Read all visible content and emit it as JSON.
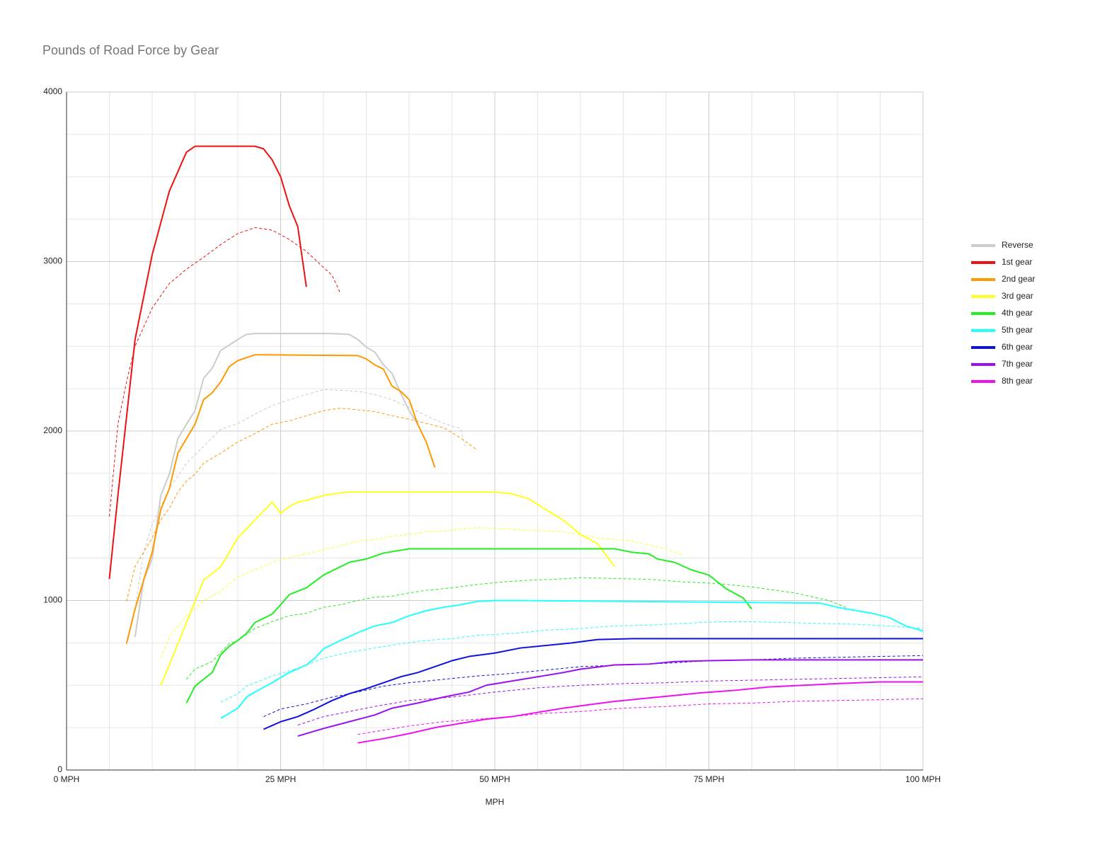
{
  "chart_data": {
    "type": "line",
    "title": "Pounds of Road Force by Gear",
    "x_label": "MPH",
    "xlim": [
      0,
      100
    ],
    "ylim": [
      0,
      4000
    ],
    "xticks": [
      {
        "value": 0,
        "label": "0 MPH"
      },
      {
        "value": 25,
        "label": "25 MPH"
      },
      {
        "value": 50,
        "label": "50 MPH"
      },
      {
        "value": 75,
        "label": "75 MPH"
      },
      {
        "value": 100,
        "label": "100 MPH"
      }
    ],
    "yticks": [
      0,
      1000,
      2000,
      3000,
      4000
    ],
    "x_minor_grid": [
      5,
      10,
      15,
      20,
      30,
      35,
      40,
      45,
      55,
      60,
      65,
      70,
      80,
      85,
      90,
      95
    ],
    "y_minor_grid": [
      250,
      500,
      750,
      1250,
      1500,
      1750,
      2250,
      2500,
      2750,
      3250,
      3500,
      3750
    ],
    "grid": true,
    "legend": "right",
    "series": [
      {
        "name": "Reverse",
        "color": "#cccccc",
        "x": [
          8,
          9,
          10,
          11,
          12,
          13,
          14,
          15,
          16,
          17,
          18,
          20,
          21,
          22,
          31,
          33,
          34,
          35,
          36,
          37,
          38,
          39,
          40,
          41
        ],
        "values": [
          785,
          1120,
          1245,
          1620,
          1745,
          1955,
          2040,
          2120,
          2310,
          2370,
          2475,
          2540,
          2570,
          2575,
          2575,
          2570,
          2540,
          2495,
          2465,
          2390,
          2340,
          2225,
          2120,
          2040
        ]
      },
      {
        "color": "#cccccc",
        "dashed": true,
        "x": [
          8,
          9,
          10,
          12,
          14,
          16,
          18,
          20,
          22,
          24,
          26,
          28,
          30,
          32,
          34,
          36,
          38,
          40,
          42,
          44,
          46,
          46.5
        ],
        "values": [
          950,
          1285,
          1450,
          1660,
          1810,
          1910,
          2010,
          2045,
          2100,
          2150,
          2185,
          2215,
          2245,
          2240,
          2235,
          2215,
          2185,
          2140,
          2090,
          2045,
          2015,
          1910
        ]
      },
      {
        "name": "1st gear",
        "color": "#ee1111",
        "x": [
          5,
          6,
          8,
          10,
          12,
          14,
          15,
          22,
          23,
          24,
          25,
          26,
          27,
          28
        ],
        "values": [
          1127,
          1620,
          2540,
          3040,
          3415,
          3645,
          3680,
          3680,
          3665,
          3600,
          3500,
          3330,
          3205,
          2850
        ]
      },
      {
        "color": "#ee1111",
        "dashed": true,
        "x": [
          5,
          6,
          7,
          8,
          10,
          12,
          14,
          16,
          18,
          20,
          22,
          24,
          26,
          28,
          30,
          31,
          32
        ],
        "values": [
          1495,
          2040,
          2290,
          2500,
          2725,
          2870,
          2955,
          3025,
          3100,
          3165,
          3200,
          3185,
          3130,
          3060,
          2965,
          2920,
          2810
        ]
      },
      {
        "name": "2nd gear",
        "color": "#ff9900",
        "x": [
          7,
          8,
          9,
          10,
          11,
          12,
          13,
          14,
          15,
          16,
          17,
          18,
          19,
          20,
          22,
          34,
          35,
          36,
          37,
          38,
          39,
          40,
          41,
          42,
          43
        ],
        "values": [
          745,
          950,
          1120,
          1285,
          1535,
          1660,
          1870,
          1955,
          2040,
          2185,
          2225,
          2290,
          2380,
          2415,
          2450,
          2445,
          2425,
          2390,
          2365,
          2265,
          2235,
          2185,
          2040,
          1935,
          1785
        ]
      },
      {
        "color": "#ff9900",
        "dashed": true,
        "x": [
          7,
          8,
          9,
          10,
          11,
          12,
          13,
          14,
          15,
          16,
          18,
          20,
          22,
          24,
          26,
          28,
          30,
          32,
          34,
          36,
          38,
          40,
          42,
          44,
          46,
          48
        ],
        "values": [
          995,
          1200,
          1285,
          1370,
          1475,
          1545,
          1640,
          1705,
          1745,
          1810,
          1870,
          1935,
          1985,
          2040,
          2060,
          2090,
          2120,
          2135,
          2125,
          2115,
          2090,
          2070,
          2045,
          2020,
          1960,
          1885
        ]
      },
      {
        "name": "3rd gear",
        "color": "#ffff22",
        "x": [
          11,
          12,
          13,
          14,
          15,
          16,
          18,
          20,
          22,
          24,
          25,
          26,
          27,
          28,
          30,
          32,
          33,
          50,
          52,
          54,
          56,
          58,
          60,
          62,
          64
        ],
        "values": [
          500,
          620,
          745,
          870,
          995,
          1120,
          1200,
          1370,
          1475,
          1580,
          1515,
          1555,
          1580,
          1590,
          1620,
          1635,
          1640,
          1640,
          1630,
          1600,
          1535,
          1475,
          1390,
          1335,
          1200
        ]
      },
      {
        "color": "#ffff22",
        "dashed": true,
        "x": [
          11,
          12,
          14,
          16,
          18,
          20,
          22,
          24,
          26,
          28,
          30,
          32,
          34,
          36,
          38,
          40,
          42,
          44,
          46,
          48,
          50,
          54,
          58,
          62,
          66,
          70,
          72
        ],
        "values": [
          660,
          785,
          910,
          1000,
          1055,
          1140,
          1180,
          1225,
          1255,
          1275,
          1300,
          1325,
          1350,
          1360,
          1380,
          1390,
          1405,
          1410,
          1420,
          1430,
          1425,
          1415,
          1405,
          1370,
          1350,
          1305,
          1265
        ]
      },
      {
        "name": "4th gear",
        "color": "#22ee22",
        "x": [
          14,
          15,
          16,
          17,
          18,
          19,
          20,
          21,
          22,
          24,
          25,
          26,
          28,
          30,
          32,
          33,
          35,
          37,
          40,
          64,
          66,
          68,
          69,
          71,
          73,
          75,
          77,
          79,
          80
        ],
        "values": [
          395,
          495,
          535,
          575,
          680,
          730,
          765,
          805,
          870,
          920,
          975,
          1035,
          1075,
          1150,
          1200,
          1225,
          1245,
          1280,
          1305,
          1305,
          1285,
          1275,
          1245,
          1225,
          1180,
          1150,
          1070,
          1015,
          950
        ]
      },
      {
        "color": "#22ee22",
        "dashed": true,
        "x": [
          14,
          15,
          17,
          18,
          19,
          20,
          22,
          24,
          26,
          28,
          30,
          32,
          34,
          36,
          38,
          40,
          42,
          45,
          48,
          51,
          54,
          57,
          60,
          64,
          68,
          72,
          76,
          80,
          85,
          89,
          91
        ],
        "values": [
          535,
          595,
          640,
          695,
          745,
          765,
          835,
          875,
          910,
          925,
          960,
          975,
          1000,
          1020,
          1025,
          1045,
          1060,
          1075,
          1095,
          1110,
          1120,
          1125,
          1135,
          1130,
          1125,
          1110,
          1100,
          1080,
          1045,
          1000,
          960
        ]
      },
      {
        "name": "5th gear",
        "color": "#22ffff",
        "x": [
          18,
          20,
          21,
          22,
          24,
          26,
          28,
          29,
          30,
          32,
          34,
          36,
          38,
          39,
          40,
          42,
          44,
          46,
          48,
          50,
          53,
          88,
          90,
          94,
          96,
          98,
          100
        ],
        "values": [
          305,
          365,
          430,
          460,
          515,
          575,
          620,
          660,
          715,
          765,
          810,
          850,
          870,
          890,
          910,
          940,
          960,
          975,
          995,
          1000,
          1000,
          985,
          960,
          925,
          900,
          850,
          820
        ]
      },
      {
        "color": "#22ffff",
        "dashed": true,
        "x": [
          18,
          20,
          21,
          24,
          27,
          30,
          33,
          36,
          39,
          42,
          45,
          48,
          52,
          56,
          60,
          64,
          68,
          72,
          76,
          80,
          84,
          88,
          92,
          96,
          100
        ],
        "values": [
          400,
          450,
          495,
          555,
          600,
          660,
          695,
          720,
          745,
          765,
          775,
          795,
          805,
          825,
          835,
          850,
          855,
          865,
          875,
          875,
          870,
          865,
          860,
          850,
          835
        ]
      },
      {
        "name": "6th gear",
        "color": "#1111dd",
        "x": [
          23,
          25,
          27,
          29,
          31,
          33,
          35,
          37,
          39,
          41,
          43,
          45,
          47,
          50,
          53,
          56,
          59,
          62,
          66,
          68,
          100
        ],
        "values": [
          240,
          285,
          315,
          360,
          410,
          450,
          480,
          515,
          550,
          575,
          610,
          645,
          670,
          690,
          720,
          735,
          750,
          770,
          775,
          775,
          775
        ]
      },
      {
        "color": "#1111dd",
        "dashed": true,
        "x": [
          23,
          25,
          28,
          31,
          34,
          37,
          40,
          44,
          48,
          52,
          56,
          60,
          65,
          70,
          75,
          80,
          85,
          90,
          95,
          100
        ],
        "values": [
          315,
          360,
          390,
          430,
          460,
          495,
          515,
          535,
          555,
          570,
          590,
          610,
          620,
          630,
          645,
          650,
          660,
          665,
          670,
          675
        ]
      },
      {
        "name": "7th gear",
        "color": "#9911ee",
        "x": [
          27,
          30,
          33,
          36,
          38,
          41,
          44,
          47,
          49,
          52,
          55,
          58,
          60,
          64,
          68,
          71,
          75,
          80,
          100
        ],
        "values": [
          200,
          245,
          285,
          325,
          365,
          395,
          430,
          460,
          500,
          525,
          550,
          575,
          595,
          620,
          625,
          640,
          645,
          650,
          650
        ]
      },
      {
        "color": "#9911ee",
        "dashed": true,
        "x": [
          27,
          30,
          33,
          36,
          40,
          45,
          50,
          55,
          60,
          65,
          70,
          75,
          80,
          85,
          90,
          95,
          100
        ],
        "values": [
          265,
          315,
          345,
          375,
          410,
          430,
          460,
          485,
          500,
          510,
          515,
          525,
          530,
          535,
          540,
          545,
          550
        ]
      },
      {
        "name": "8th gear",
        "color": "#ee11ee",
        "x": [
          34,
          37,
          40,
          43,
          46,
          49,
          52,
          55,
          58,
          61,
          64,
          67,
          70,
          74,
          78,
          82,
          86,
          90,
          95,
          100
        ],
        "values": [
          160,
          185,
          215,
          250,
          275,
          300,
          315,
          340,
          365,
          385,
          405,
          420,
          435,
          455,
          470,
          490,
          500,
          510,
          520,
          520
        ]
      },
      {
        "color": "#ee11ee",
        "dashed": true,
        "x": [
          34,
          37,
          40,
          44,
          48,
          52,
          56,
          60,
          65,
          70,
          75,
          80,
          85,
          90,
          95,
          100
        ],
        "values": [
          210,
          235,
          260,
          285,
          300,
          315,
          335,
          345,
          365,
          375,
          390,
          395,
          405,
          410,
          415,
          420
        ]
      }
    ]
  }
}
